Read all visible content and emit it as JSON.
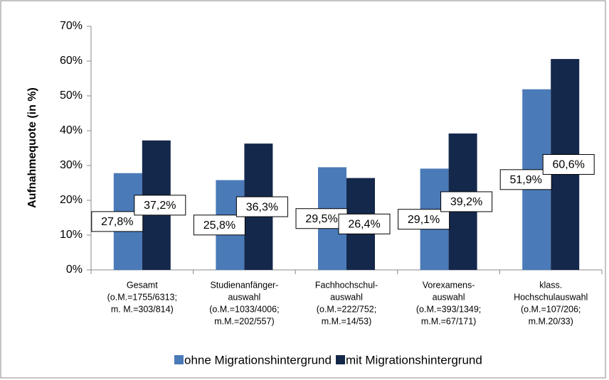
{
  "chart_data": {
    "type": "bar",
    "y_label": "Aufnahmequote (in %)",
    "categories": [
      [
        "Gesamt",
        "(o.M.=1755/6313;",
        "m. M.=303/814)"
      ],
      [
        "Studienanfänger-",
        "auswahl",
        "(o.M.=1033/4006;",
        "m.M.=202/557)"
      ],
      [
        "Fachhochschul-",
        "auswahl",
        "(o.M.=222/752;",
        "m.M.=14/53)"
      ],
      [
        "Vorexamens-",
        "auswahl",
        "(o.M.=393/1349;",
        "m.M.=67/171)"
      ],
      [
        "klass.",
        "Hochschulauswahl",
        "(o.M.=107/206;",
        "m.M.20/33)"
      ]
    ],
    "series": [
      {
        "name": "ohne Migrationshintergrund",
        "color": "#4a7ab8",
        "values": [
          27.8,
          25.8,
          29.5,
          29.1,
          51.9
        ],
        "value_labels": [
          "27,8%",
          "25,8%",
          "29,5%",
          "29,1%",
          "51,9%"
        ]
      },
      {
        "name": "mit Migrationshintergrund",
        "color": "#14284b",
        "values": [
          37.2,
          36.3,
          26.4,
          39.2,
          60.6
        ],
        "value_labels": [
          "37,2%",
          "36,3%",
          "26,4%",
          "39,2%",
          "60,6%"
        ]
      }
    ],
    "ylim": [
      0,
      70
    ],
    "yticks": [
      {
        "value": 0,
        "label": "0%"
      },
      {
        "value": 10,
        "label": "10%"
      },
      {
        "value": 20,
        "label": "20%"
      },
      {
        "value": 30,
        "label": "30%"
      },
      {
        "value": 40,
        "label": "40%"
      },
      {
        "value": 50,
        "label": "50%"
      },
      {
        "value": 60,
        "label": "60%"
      },
      {
        "value": 70,
        "label": "70%"
      }
    ],
    "grid": false
  }
}
